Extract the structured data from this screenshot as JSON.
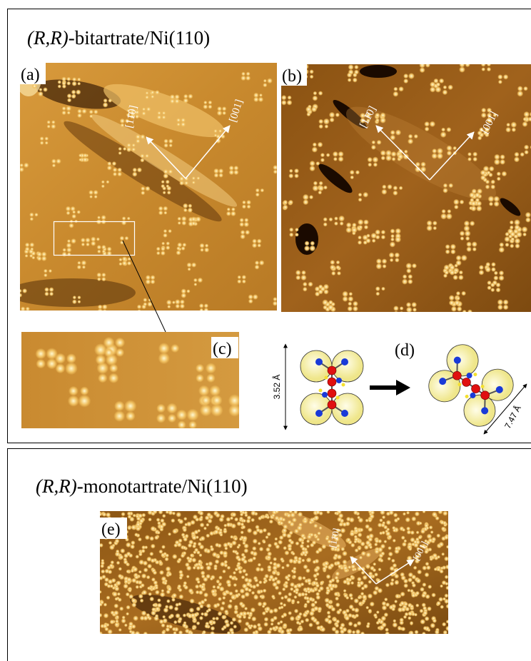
{
  "top": {
    "title_italic": "(R,R)",
    "title_rest": "-bitartrate/Ni(110)"
  },
  "panels": [
    {
      "label": "(a)",
      "directions": [
        "[11̄0]",
        "[001]"
      ]
    },
    {
      "label": "(b)",
      "directions": [
        "[11̄0]",
        "[001]"
      ]
    },
    {
      "label": "(c)"
    },
    {
      "label": "(d)",
      "dimensions": [
        "3.52 Å",
        "7.47 Å"
      ]
    },
    {
      "label": "(e)",
      "directions": [
        "[11̄0]",
        "[001]"
      ]
    }
  ],
  "bottom": {
    "title_italic": "(R,R)",
    "title_rest": "-monotartrate/Ni(110)"
  }
}
